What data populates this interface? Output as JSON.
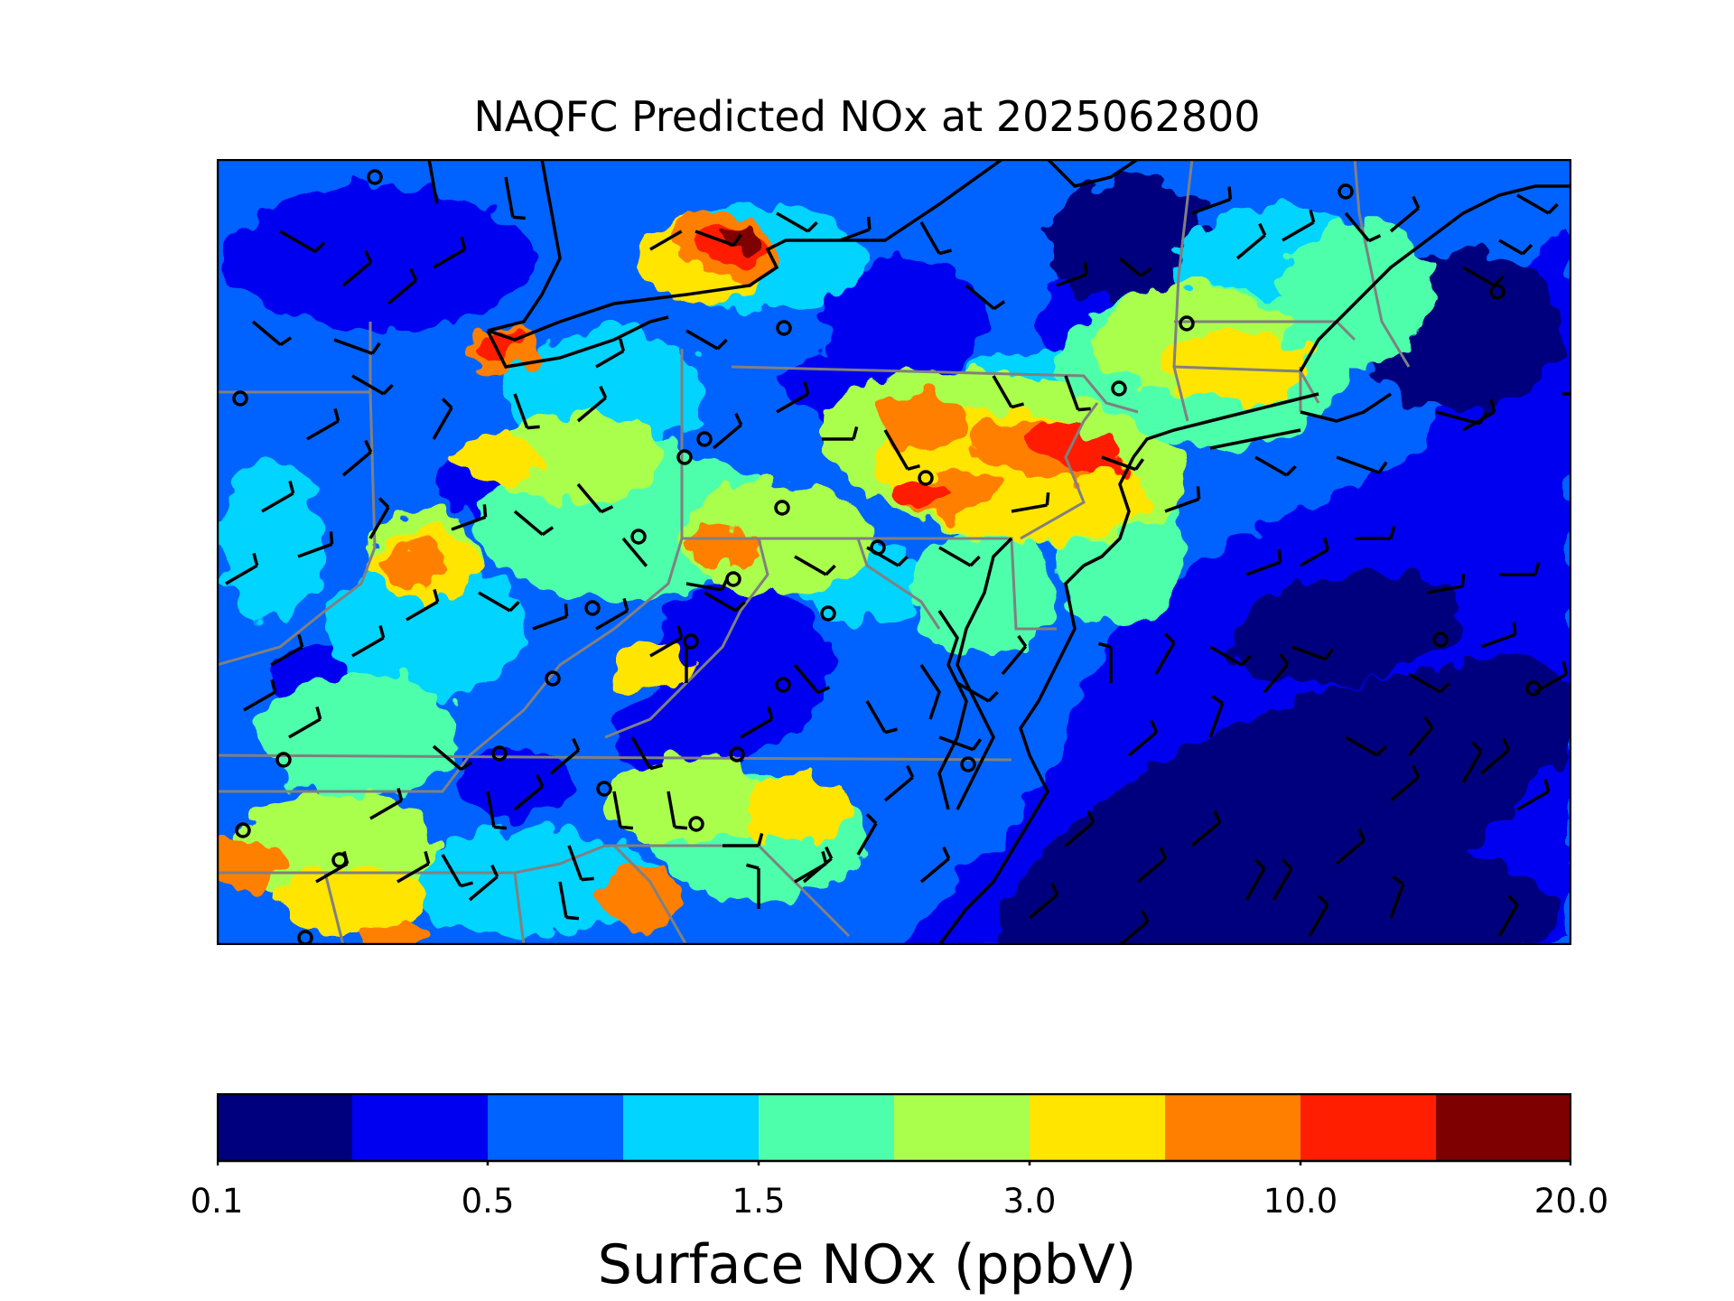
{
  "title": "NAQFC Predicted NOx at 2025062800",
  "colorbar": {
    "label": "Surface NOx (ppbV)",
    "ticks": [
      "0.1",
      "0.5",
      "1.5",
      "3.0",
      "10.0",
      "20.0"
    ],
    "colors": [
      "#00007f",
      "#0000f1",
      "#0062ff",
      "#00d4ff",
      "#4dffaa",
      "#aaff4d",
      "#ffe500",
      "#ff7f00",
      "#ff1e00",
      "#7f0000"
    ]
  },
  "map": {
    "region": "Northeastern United States",
    "layers": [
      "surface-nox-field",
      "wind-barbs",
      "monitoring-sites",
      "state-borders",
      "coastline"
    ]
  }
}
